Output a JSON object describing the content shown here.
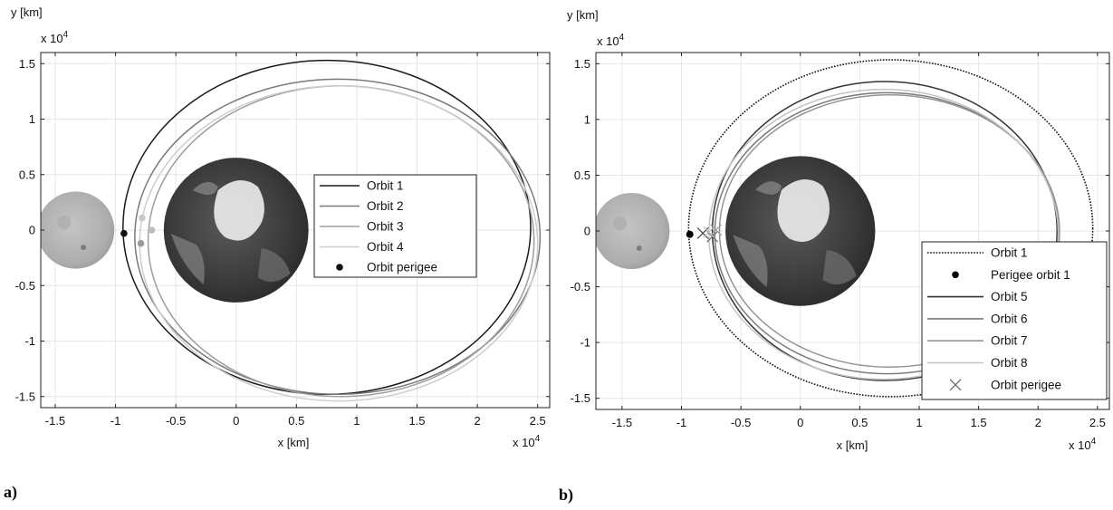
{
  "chart_data": [
    {
      "type": "line",
      "panel_label": "a)",
      "xlabel": "x [km]",
      "ylabel": "y [km]",
      "x_multiplier": "x 10",
      "y_multiplier": "x 10",
      "multiplier_exponent": "4",
      "xlim": [
        -1.62,
        2.6
      ],
      "ylim": [
        -1.6,
        1.6
      ],
      "xticks": [
        -1.5,
        -1,
        -0.5,
        0,
        0.5,
        1,
        1.5,
        2,
        2.5
      ],
      "xtick_labels": [
        "-1.5",
        "-1",
        "-0.5",
        "0",
        "0.5",
        "1",
        "1.5",
        "2",
        "2.5"
      ],
      "yticks": [
        -1.5,
        -1,
        -0.5,
        0,
        0.5,
        1,
        1.5
      ],
      "ytick_labels": [
        "-1.5",
        "-1",
        "-0.5",
        "0",
        "0.5",
        "1",
        "1.5"
      ],
      "grid": true,
      "legend_position": "center-right",
      "bodies": [
        {
          "name": "moon",
          "center": [
            -1.33,
            0
          ],
          "radius": 0.32,
          "color": "#b5b5b5",
          "icon": "moon-disk"
        },
        {
          "name": "earth",
          "center": [
            0,
            0
          ],
          "radius": 0.6,
          "color": "#444444",
          "icon": "earth-disk"
        }
      ],
      "series": [
        {
          "name": "Orbit 1",
          "color": "#1a1a1a",
          "style": "solid",
          "ellipse": {
            "cx": 0.752,
            "cy": 0.025,
            "a": 1.69,
            "b": 1.505
          }
        },
        {
          "name": "Orbit 2",
          "color": "#7a7a7a",
          "style": "solid",
          "ellipse": {
            "cx": 0.84,
            "cy": -0.06,
            "a": 1.68,
            "b": 1.42
          }
        },
        {
          "name": "Orbit 3",
          "color": "#9e9e9e",
          "style": "solid",
          "ellipse": {
            "cx": 0.87,
            "cy": -0.1,
            "a": 1.6,
            "b": 1.4
          }
        },
        {
          "name": "Orbit 4",
          "color": "#cdcdcd",
          "style": "solid",
          "ellipse": {
            "cx": 0.85,
            "cy": -0.12,
            "a": 1.65,
            "b": 1.42
          }
        }
      ],
      "perigee_markers": {
        "name": "Orbit perigee",
        "symbol": "dot",
        "points": [
          {
            "x": -0.93,
            "y": -0.03,
            "color": "#111111"
          },
          {
            "x": -0.78,
            "y": 0.11,
            "color": "#c8c8c8"
          },
          {
            "x": -0.79,
            "y": -0.12,
            "color": "#9a9a9a"
          },
          {
            "x": -0.7,
            "y": 0.0,
            "color": "#bdbdbd"
          }
        ]
      }
    },
    {
      "type": "line",
      "panel_label": "b)",
      "xlabel": "x [km]",
      "ylabel": "y [km]",
      "x_multiplier": "x 10",
      "y_multiplier": "x 10",
      "multiplier_exponent": "4",
      "xlim": [
        -1.72,
        2.6
      ],
      "ylim": [
        -1.6,
        1.6
      ],
      "xticks": [
        -1.5,
        -1,
        -0.5,
        0,
        0.5,
        1,
        1.5,
        2,
        2.5
      ],
      "xtick_labels": [
        "-1.5",
        "-1",
        "-0.5",
        "0",
        "0.5",
        "1",
        "1.5",
        "2",
        "2.5"
      ],
      "yticks": [
        -1.5,
        -1,
        -0.5,
        0,
        0.5,
        1,
        1.5
      ],
      "ytick_labels": [
        "-1.5",
        "-1",
        "-0.5",
        "0",
        "0.5",
        "1",
        "1.5"
      ],
      "grid": true,
      "legend_position": "bottom-right",
      "bodies": [
        {
          "name": "moon",
          "center": [
            -1.42,
            0
          ],
          "radius": 0.32,
          "color": "#b5b5b5",
          "icon": "moon-disk"
        },
        {
          "name": "earth",
          "center": [
            0,
            0
          ],
          "radius": 0.63,
          "color": "#444444",
          "icon": "earth-disk"
        }
      ],
      "series": [
        {
          "name": "Orbit 1",
          "color": "#111111",
          "style": "dotted",
          "ellipse": {
            "cx": 0.76,
            "cy": 0.025,
            "a": 1.7,
            "b": 1.51
          }
        },
        {
          "name": "Orbit 5",
          "color": "#333333",
          "style": "solid",
          "ellipse": {
            "cx": 0.71,
            "cy": 0.0,
            "a": 1.45,
            "b": 1.34
          }
        },
        {
          "name": "Orbit 6",
          "color": "#7a7a7a",
          "style": "solid",
          "ellipse": {
            "cx": 0.73,
            "cy": -0.02,
            "a": 1.45,
            "b": 1.26
          }
        },
        {
          "name": "Orbit 7",
          "color": "#959595",
          "style": "solid",
          "ellipse": {
            "cx": 0.75,
            "cy": 0.0,
            "a": 1.43,
            "b": 1.22
          }
        },
        {
          "name": "Orbit 8",
          "color": "#c4c4c4",
          "style": "solid",
          "ellipse": {
            "cx": 0.7,
            "cy": -0.03,
            "a": 1.47,
            "b": 1.3
          }
        }
      ],
      "perigee_orbit1": {
        "name": "Perigee orbit 1",
        "symbol": "dot",
        "x": -0.93,
        "y": -0.03,
        "color": "#000000"
      },
      "perigee_markers": {
        "name": "Orbit perigee",
        "symbol": "cross",
        "points": [
          {
            "x": -0.82,
            "y": -0.02,
            "color": "#444444"
          },
          {
            "x": -0.74,
            "y": -0.05,
            "color": "#6a6a6a"
          },
          {
            "x": -0.71,
            "y": 0.01,
            "color": "#9a9a9a"
          },
          {
            "x": -0.77,
            "y": -0.01,
            "color": "#bdbdbd"
          }
        ]
      }
    }
  ]
}
